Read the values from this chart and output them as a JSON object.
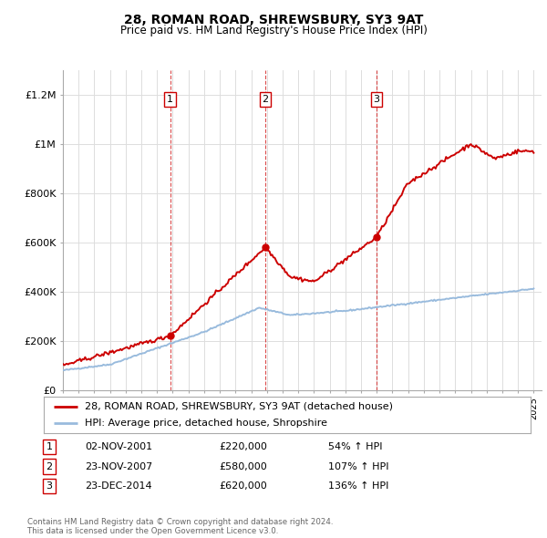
{
  "title": "28, ROMAN ROAD, SHREWSBURY, SY3 9AT",
  "subtitle": "Price paid vs. HM Land Registry's House Price Index (HPI)",
  "ylabel_ticks": [
    "£0",
    "£200K",
    "£400K",
    "£600K",
    "£800K",
    "£1M",
    "£1.2M"
  ],
  "ytick_values": [
    0,
    200000,
    400000,
    600000,
    800000,
    1000000,
    1200000
  ],
  "ylim": [
    0,
    1300000
  ],
  "xlim_start": 1995,
  "xlim_end": 2025.5,
  "sale_dates": [
    2001.84,
    2007.9,
    2014.98
  ],
  "sale_prices": [
    220000,
    580000,
    620000
  ],
  "sale_labels": [
    "1",
    "2",
    "3"
  ],
  "vline_color": "#cc0000",
  "red_line_color": "#cc0000",
  "blue_line_color": "#99bbdd",
  "background_color": "#ffffff",
  "grid_color": "#dddddd",
  "legend_entries": [
    "28, ROMAN ROAD, SHREWSBURY, SY3 9AT (detached house)",
    "HPI: Average price, detached house, Shropshire"
  ],
  "table_entries": [
    {
      "num": "1",
      "date": "02-NOV-2001",
      "price": "£220,000",
      "pct": "54% ↑ HPI"
    },
    {
      "num": "2",
      "date": "23-NOV-2007",
      "price": "£580,000",
      "pct": "107% ↑ HPI"
    },
    {
      "num": "3",
      "date": "23-DEC-2014",
      "price": "£620,000",
      "pct": "136% ↑ HPI"
    }
  ],
  "footer": "Contains HM Land Registry data © Crown copyright and database right 2024.\nThis data is licensed under the Open Government Licence v3.0."
}
